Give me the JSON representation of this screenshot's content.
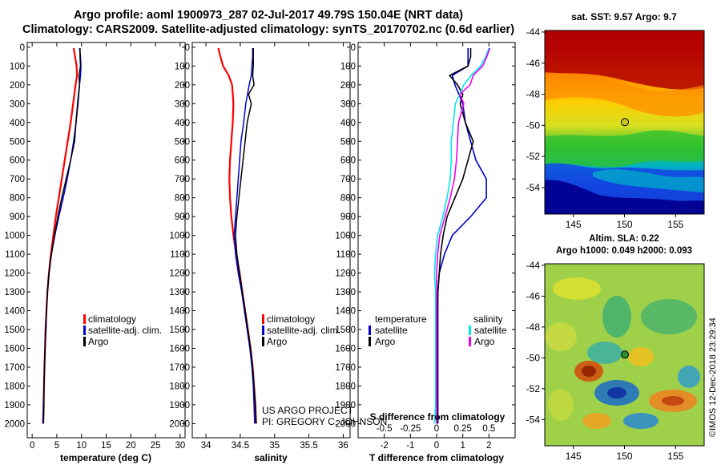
{
  "title_line1": "Argo profile: aoml 1900973_287 02-Jul-2017 49.79S 150.04E (NRT data)",
  "title_line2": "Climatology: CARS2009. Satellite-adjusted climatology: synTS_20170702.nc (0.6d earlier)",
  "sst_title": "sat. SST: 9.57 Argo: 9.7",
  "sla_title_1": "Altim. SLA: 0.22",
  "sla_title_2": "Argo h1000: 0.049 h2000: 0.093",
  "credit_1": "US ARGO PROJECT",
  "credit_2": "PI: GREGORY C. JOHNSON",
  "imos_stamp": "©IMOS 12-Dec-2018 23:29:34",
  "legend_labels": {
    "climatology": "climatology",
    "satellite_adj": "satellite-adj. clim.",
    "argo": "Argo",
    "temperature": "temperature",
    "salinity": "salinity",
    "satellite": "satellite"
  },
  "colors": {
    "climatology": "#ff0000",
    "satellite": "#0000cc",
    "argo": "#000000",
    "sal_satellite": "#00e5ee",
    "sal_argo": "#ee00ee",
    "map_marker": "#2f8f2f"
  },
  "chart_data": [
    {
      "type": "line",
      "name": "temperature profile",
      "xlabel": "temperature (deg C)",
      "ylabel": "",
      "xlim": [
        -1,
        31
      ],
      "ylim": [
        2075,
        -25
      ],
      "xticks": [
        0,
        5,
        10,
        15,
        20,
        25,
        30
      ],
      "yticks": [
        0,
        100,
        200,
        300,
        400,
        500,
        600,
        700,
        800,
        900,
        1000,
        1100,
        1200,
        1300,
        1400,
        1500,
        1600,
        1700,
        1800,
        1900,
        2000
      ],
      "series": [
        {
          "name": "climatology",
          "depth": [
            5,
            50,
            100,
            150,
            200,
            300,
            400,
            500,
            600,
            700,
            800,
            900,
            1000,
            1100,
            1200,
            1300,
            1400,
            1500,
            1600,
            1700,
            1800,
            1900,
            2000
          ],
          "values": [
            8.4,
            8.7,
            9.0,
            9.1,
            8.8,
            8.3,
            7.8,
            7.2,
            6.6,
            6.0,
            5.4,
            4.8,
            4.3,
            3.8,
            3.4,
            3.1,
            2.9,
            2.7,
            2.6,
            2.5,
            2.4,
            2.3,
            2.2
          ]
        },
        {
          "name": "satellite-adj. clim.",
          "depth": [
            5,
            50,
            100,
            150,
            200,
            300,
            400,
            500,
            600,
            700,
            800,
            900,
            1000,
            1100,
            1200,
            1300,
            1400,
            1500,
            1600,
            1700,
            1800,
            1900,
            2000
          ],
          "values": [
            9.6,
            9.8,
            9.9,
            9.8,
            9.6,
            9.3,
            8.9,
            8.4,
            7.8,
            7.1,
            6.3,
            5.4,
            4.6,
            3.9,
            3.4,
            3.1,
            2.9,
            2.7,
            2.6,
            2.5,
            2.4,
            2.3,
            2.2
          ]
        },
        {
          "name": "Argo",
          "depth": [
            5,
            50,
            100,
            150,
            200,
            250,
            300,
            400,
            500,
            600,
            700,
            800,
            900,
            1000,
            1100,
            1200,
            1300,
            1400,
            1500,
            1600,
            1700,
            1800,
            1900,
            2000
          ],
          "values": [
            9.7,
            9.7,
            9.8,
            9.5,
            9.6,
            9.4,
            9.2,
            8.9,
            8.6,
            7.8,
            6.9,
            6.0,
            5.2,
            4.5,
            3.9,
            3.4,
            3.1,
            2.9,
            2.8,
            2.6,
            2.5,
            2.4,
            2.4,
            2.3
          ]
        }
      ]
    },
    {
      "type": "line",
      "name": "salinity profile",
      "xlabel": "salinity",
      "ylabel": "",
      "xlim": [
        33.8,
        36.1
      ],
      "ylim": [
        2075,
        -25
      ],
      "xticks": [
        34,
        34.5,
        35,
        35.5,
        36
      ],
      "series": [
        {
          "name": "climatology",
          "depth": [
            5,
            50,
            100,
            150,
            200,
            300,
            400,
            500,
            600,
            700,
            800,
            900,
            1000,
            1100,
            1200,
            1300,
            1400,
            1500,
            1600,
            1700,
            1800,
            1900,
            2000
          ],
          "values": [
            34.18,
            34.21,
            34.25,
            34.33,
            34.38,
            34.4,
            34.39,
            34.37,
            34.35,
            34.34,
            34.35,
            34.37,
            34.4,
            34.44,
            34.49,
            34.53,
            34.57,
            34.61,
            34.65,
            34.68,
            34.7,
            34.72,
            34.73
          ]
        },
        {
          "name": "satellite-adj. clim.",
          "depth": [
            5,
            50,
            100,
            150,
            200,
            300,
            400,
            500,
            600,
            700,
            800,
            900,
            1000,
            1100,
            1200,
            1300,
            1400,
            1500,
            1600,
            1700,
            1800,
            1900,
            2000
          ],
          "values": [
            34.68,
            34.68,
            34.67,
            34.66,
            34.63,
            34.58,
            34.55,
            34.51,
            34.49,
            34.47,
            34.45,
            34.43,
            34.41,
            34.43,
            34.47,
            34.52,
            34.56,
            34.6,
            34.64,
            34.67,
            34.69,
            34.7,
            34.71
          ]
        },
        {
          "name": "Argo",
          "depth": [
            5,
            50,
            100,
            150,
            200,
            250,
            300,
            400,
            500,
            600,
            700,
            800,
            900,
            1000,
            1100,
            1200,
            1300,
            1400,
            1500,
            1600,
            1700,
            1800,
            1900,
            2000
          ],
          "values": [
            34.69,
            34.69,
            34.69,
            34.68,
            34.7,
            34.62,
            34.66,
            34.6,
            34.57,
            34.54,
            34.51,
            34.48,
            34.45,
            34.43,
            34.45,
            34.49,
            34.53,
            34.57,
            34.61,
            34.65,
            34.68,
            34.7,
            34.72,
            34.73
          ]
        }
      ]
    },
    {
      "type": "line",
      "name": "difference from climatology",
      "xlabel": "T difference from climatology",
      "xlabel_top": "S difference from climatology",
      "ylabel": "",
      "xlim": [
        -3,
        3
      ],
      "ylim": [
        2075,
        -25
      ],
      "xticks": [
        -2,
        -1,
        0,
        1,
        2
      ],
      "xticks_S": [
        -0.5,
        -0.25,
        0,
        0.25,
        0.5
      ],
      "series": [
        {
          "name": "temperature satellite",
          "depth": [
            5,
            50,
            100,
            150,
            200,
            300,
            400,
            500,
            600,
            700,
            800,
            900,
            1000,
            1100,
            1200,
            1300,
            1400,
            1500,
            1600,
            1700,
            1800,
            1900,
            2000
          ],
          "values": [
            1.2,
            1.2,
            1.2,
            0.6,
            0.7,
            1.0,
            1.1,
            1.3,
            1.5,
            1.9,
            1.9,
            1.3,
            0.6,
            0.3,
            0.1,
            0.05,
            0.05,
            0.05,
            0.05,
            0.05,
            0.05,
            0.05,
            0.05
          ]
        },
        {
          "name": "temperature Argo",
          "depth": [
            5,
            50,
            100,
            150,
            200,
            250,
            300,
            400,
            500,
            600,
            700,
            800,
            900,
            1000,
            1100,
            1200,
            1300,
            1400,
            1500,
            1600,
            1700,
            1800,
            1900,
            2000
          ],
          "values": [
            1.3,
            1.3,
            1.2,
            0.5,
            0.8,
            1.0,
            0.9,
            1.1,
            1.4,
            1.2,
            1.0,
            0.7,
            0.4,
            0.25,
            0.15,
            0.1,
            0.05,
            0.03,
            0.03,
            0.03,
            0.03,
            0.03,
            0.03,
            0.03
          ]
        },
        {
          "name": "salinity satellite",
          "depth": [
            5,
            50,
            100,
            150,
            200,
            300,
            400,
            500,
            600,
            700,
            800,
            900,
            1000,
            1100,
            1200,
            1300,
            1400,
            1500,
            1600,
            1700,
            1800,
            1900,
            2000
          ],
          "values": [
            0.5,
            0.47,
            0.42,
            0.33,
            0.26,
            0.18,
            0.16,
            0.14,
            0.14,
            0.13,
            0.1,
            0.06,
            0.01,
            -0.01,
            -0.02,
            -0.01,
            -0.01,
            -0.01,
            -0.01,
            -0.01,
            -0.01,
            -0.01,
            -0.02
          ]
        },
        {
          "name": "salinity Argo",
          "depth": [
            5,
            50,
            100,
            150,
            200,
            250,
            300,
            400,
            500,
            600,
            700,
            800,
            900,
            1000,
            1100,
            1200,
            1300,
            1400,
            1500,
            1600,
            1700,
            1800,
            1900,
            2000
          ],
          "values": [
            0.51,
            0.48,
            0.44,
            0.35,
            0.32,
            0.22,
            0.26,
            0.21,
            0.2,
            0.19,
            0.17,
            0.13,
            0.08,
            0.03,
            0.01,
            0.0,
            0.0,
            0.0,
            0.0,
            0.0,
            0.0,
            0.0,
            0.0,
            0.0
          ]
        }
      ]
    },
    {
      "type": "heatmap",
      "name": "SST map",
      "title": "sat. SST: 9.57 Argo: 9.7",
      "xticks": [
        145,
        150,
        155
      ],
      "yticks": [
        -44,
        -46,
        -48,
        -50,
        -52,
        -54
      ],
      "xlim": [
        142.2,
        157.8
      ],
      "ylim": [
        -55.7,
        -43.9
      ],
      "float_position": [
        150.04,
        -49.79
      ]
    },
    {
      "type": "heatmap",
      "name": "SLA map",
      "title": "Altim. SLA: 0.22",
      "xticks": [
        145,
        150,
        155
      ],
      "yticks": [
        -44,
        -46,
        -48,
        -50,
        -52,
        -54
      ],
      "xlim": [
        142.2,
        157.8
      ],
      "ylim": [
        -55.7,
        -43.9
      ],
      "float_position": [
        150.04,
        -49.79
      ]
    }
  ]
}
